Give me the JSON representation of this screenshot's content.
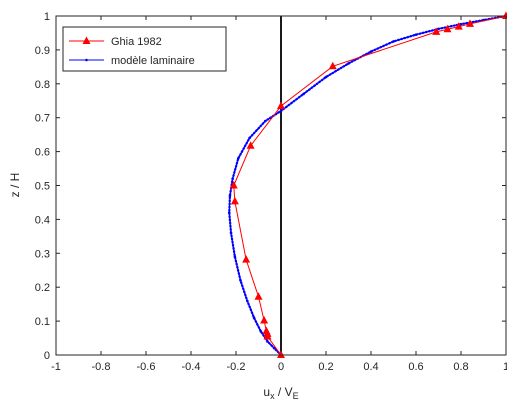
{
  "chart_data": {
    "type": "line",
    "xlabel": "u",
    "xlabel_sub1": "x",
    "xlabel_mid": " / V",
    "xlabel_sub2": "E",
    "ylabel": "z / H",
    "xlim": [
      -1,
      1
    ],
    "ylim": [
      0,
      1
    ],
    "x_ticks": [
      -1,
      -0.8,
      -0.6,
      -0.4,
      -0.2,
      0,
      0.2,
      0.4,
      0.6,
      0.8,
      1
    ],
    "y_ticks": [
      0,
      0.1,
      0.2,
      0.3,
      0.4,
      0.5,
      0.6,
      0.7,
      0.8,
      0.9,
      1
    ],
    "x_tick_labels": [
      "-1",
      "-0.8",
      "-0.6",
      "-0.4",
      "-0.2",
      "0",
      "0.2",
      "0.4",
      "0.6",
      "0.8",
      "1"
    ],
    "y_tick_labels": [
      "0",
      "0.1",
      "0.2",
      "0.3",
      "0.4",
      "0.5",
      "0.6",
      "0.7",
      "0.8",
      "0.9",
      "1"
    ],
    "grid": false,
    "legend_position": "top-left",
    "vertical_reference_line": 0,
    "series": [
      {
        "name": "Ghia 1982",
        "color": "#ff0000",
        "marker": "triangle",
        "points": [
          [
            0.0,
            0.0
          ],
          [
            -0.06,
            0.0547
          ],
          [
            -0.06,
            0.0625
          ],
          [
            -0.065,
            0.0703
          ],
          [
            -0.075,
            0.1016
          ],
          [
            -0.1,
            0.1719
          ],
          [
            -0.155,
            0.2813
          ],
          [
            -0.205,
            0.4531
          ],
          [
            -0.21,
            0.5
          ],
          [
            -0.135,
            0.6172
          ],
          [
            0.0,
            0.7344
          ],
          [
            0.23,
            0.8516
          ],
          [
            0.69,
            0.9531
          ],
          [
            0.74,
            0.9609
          ],
          [
            0.79,
            0.9688
          ],
          [
            0.84,
            0.9766
          ],
          [
            1.0,
            1.0
          ]
        ]
      },
      {
        "name": "modèle laminaire",
        "color": "#0000ff",
        "marker": "dot",
        "points": [
          [
            0.0,
            0.0
          ],
          [
            -0.03,
            0.02
          ],
          [
            -0.06,
            0.04
          ],
          [
            -0.09,
            0.07
          ],
          [
            -0.12,
            0.11
          ],
          [
            -0.15,
            0.16
          ],
          [
            -0.18,
            0.22
          ],
          [
            -0.205,
            0.29
          ],
          [
            -0.222,
            0.36
          ],
          [
            -0.23,
            0.42
          ],
          [
            -0.227,
            0.47
          ],
          [
            -0.215,
            0.52
          ],
          [
            -0.19,
            0.58
          ],
          [
            -0.14,
            0.64
          ],
          [
            -0.07,
            0.69
          ],
          [
            0.0,
            0.72
          ],
          [
            0.1,
            0.77
          ],
          [
            0.2,
            0.82
          ],
          [
            0.3,
            0.86
          ],
          [
            0.4,
            0.895
          ],
          [
            0.5,
            0.925
          ],
          [
            0.6,
            0.945
          ],
          [
            0.7,
            0.962
          ],
          [
            0.8,
            0.976
          ],
          [
            0.9,
            0.988
          ],
          [
            1.0,
            1.0
          ]
        ]
      }
    ]
  }
}
